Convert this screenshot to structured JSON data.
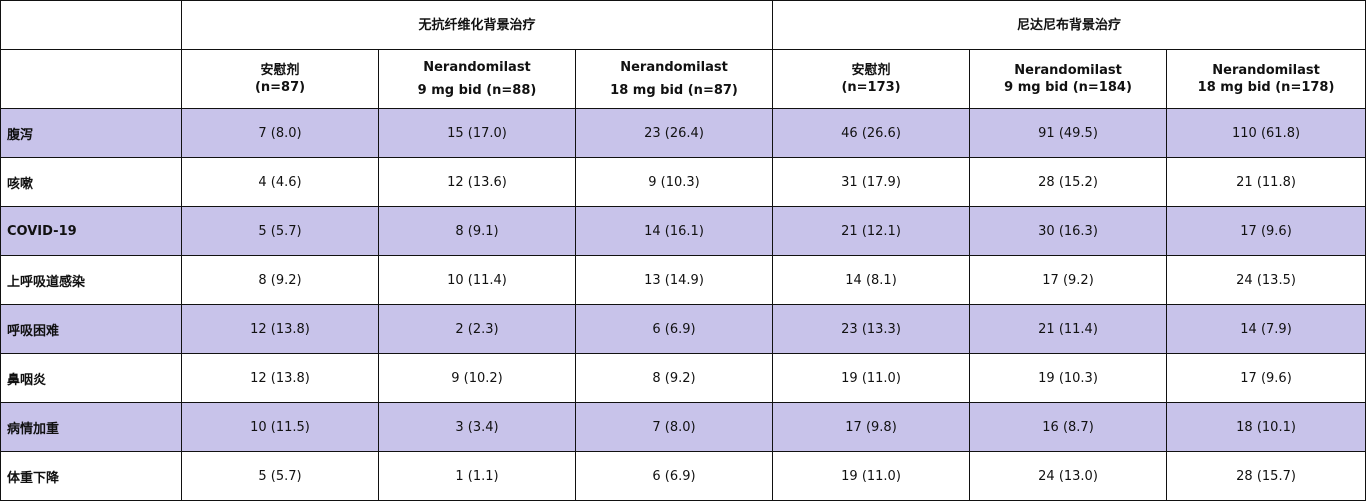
{
  "colors": {
    "shaded_row": "#c8c3ea",
    "border": "#111111"
  },
  "header": {
    "groups": [
      "无抗纤维化背景治疗",
      "尼达尼布背景治疗"
    ],
    "columns": [
      {
        "line1": "安慰剂",
        "line2": "(n=87)"
      },
      {
        "line1": "Nerandomilast",
        "line2": "9 mg bid (n=88)"
      },
      {
        "line1": "Nerandomilast",
        "line2": "18 mg bid (n=87)"
      },
      {
        "line1": "安慰剂",
        "line2": "(n=173)"
      },
      {
        "line1": "Nerandomilast",
        "line2": "9 mg bid (n=184)"
      },
      {
        "line1": "Nerandomilast",
        "line2": "18 mg bid (n=178)"
      }
    ]
  },
  "rows": [
    {
      "label": "腹泻",
      "values": [
        "7 (8.0)",
        "15 (17.0)",
        "23 (26.4)",
        "46 (26.6)",
        "91 (49.5)",
        "110 (61.8)"
      ]
    },
    {
      "label": "咳嗽",
      "values": [
        "4 (4.6)",
        "12 (13.6)",
        "9 (10.3)",
        "31 (17.9)",
        "28 (15.2)",
        "21 (11.8)"
      ]
    },
    {
      "label": "COVID-19",
      "values": [
        "5 (5.7)",
        "8 (9.1)",
        "14 (16.1)",
        "21 (12.1)",
        "30 (16.3)",
        "17 (9.6)"
      ]
    },
    {
      "label": "上呼吸道感染",
      "values": [
        "8 (9.2)",
        "10 (11.4)",
        "13 (14.9)",
        "14 (8.1)",
        "17 (9.2)",
        "24 (13.5)"
      ]
    },
    {
      "label": "呼吸困难",
      "values": [
        "12 (13.8)",
        "2 (2.3)",
        "6 (6.9)",
        "23 (13.3)",
        "21 (11.4)",
        "14 (7.9)"
      ]
    },
    {
      "label": "鼻咽炎",
      "values": [
        "12 (13.8)",
        "9 (10.2)",
        "8 (9.2)",
        "19 (11.0)",
        "19 (10.3)",
        "17 (9.6)"
      ]
    },
    {
      "label": "病情加重",
      "values": [
        "10 (11.5)",
        "3 (3.4)",
        "7 (8.0)",
        "17 (9.8)",
        "16 (8.7)",
        "18 (10.1)"
      ]
    },
    {
      "label": "体重下降",
      "values": [
        "5 (5.7)",
        "1 (1.1)",
        "6 (6.9)",
        "19 (11.0)",
        "24 (13.0)",
        "28 (15.7)"
      ]
    }
  ]
}
